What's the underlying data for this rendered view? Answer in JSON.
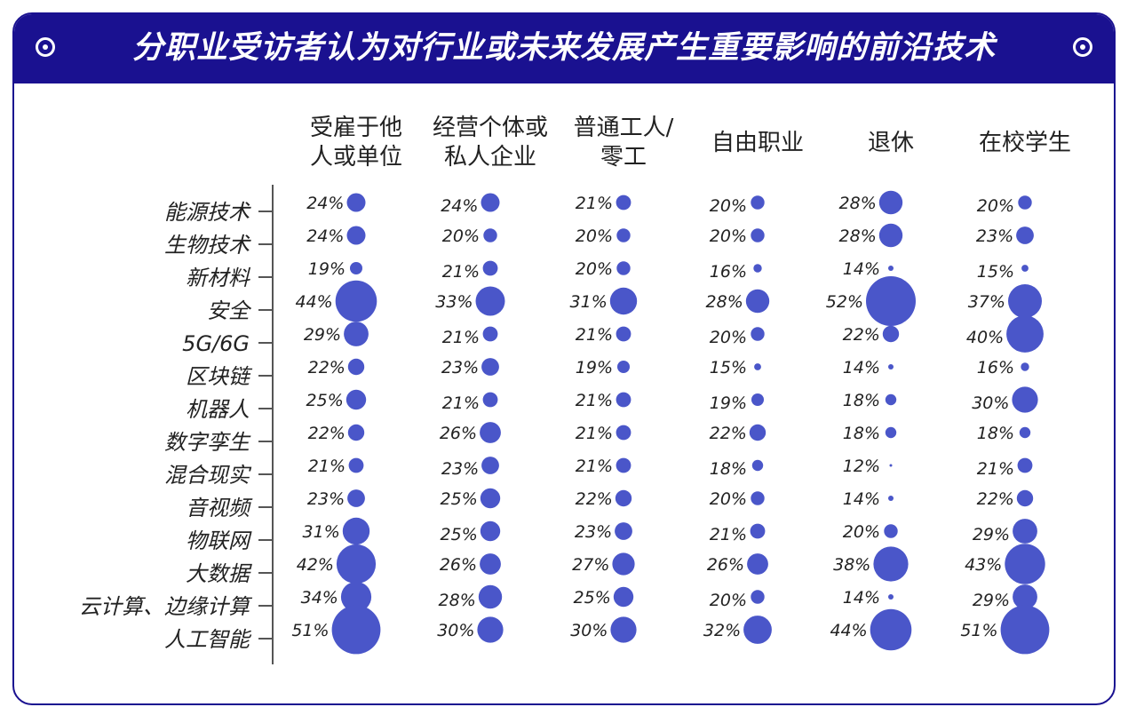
{
  "title": "分职业受访者认为对行业或未来发展产生重要影响的前沿技术",
  "colors": {
    "header": "#1a1190",
    "bubble": "#4a56c9",
    "axis": "#555555"
  },
  "chart_data": {
    "type": "bubble",
    "categories": [
      "能源技术",
      "生物技术",
      "新材料",
      "安全",
      "5G/6G",
      "区块链",
      "机器人",
      "数字孪生",
      "混合现实",
      "音视频",
      "物联网",
      "大数据",
      "云计算、边缘计算",
      "人工智能"
    ],
    "series": [
      {
        "name": [
          "受雇于他",
          "人或单位"
        ],
        "values": [
          24,
          24,
          19,
          44,
          29,
          22,
          25,
          22,
          21,
          23,
          31,
          42,
          34,
          51
        ]
      },
      {
        "name": [
          "经营个体或",
          "私人企业"
        ],
        "values": [
          24,
          20,
          21,
          33,
          21,
          23,
          21,
          26,
          23,
          25,
          25,
          26,
          28,
          30
        ]
      },
      {
        "name": [
          "普通工人/",
          "零工"
        ],
        "values": [
          21,
          20,
          20,
          31,
          21,
          19,
          21,
          21,
          21,
          22,
          23,
          27,
          25,
          30
        ]
      },
      {
        "name": [
          "自由职业"
        ],
        "values": [
          20,
          20,
          16,
          28,
          20,
          15,
          19,
          22,
          18,
          20,
          21,
          26,
          20,
          32
        ]
      },
      {
        "name": [
          "退休"
        ],
        "values": [
          28,
          28,
          14,
          52,
          22,
          14,
          18,
          18,
          12,
          14,
          20,
          38,
          14,
          44
        ]
      },
      {
        "name": [
          "在校学生"
        ],
        "values": [
          20,
          23,
          15,
          37,
          40,
          16,
          30,
          18,
          21,
          22,
          29,
          43,
          29,
          51
        ]
      }
    ],
    "value_suffix": "%"
  }
}
